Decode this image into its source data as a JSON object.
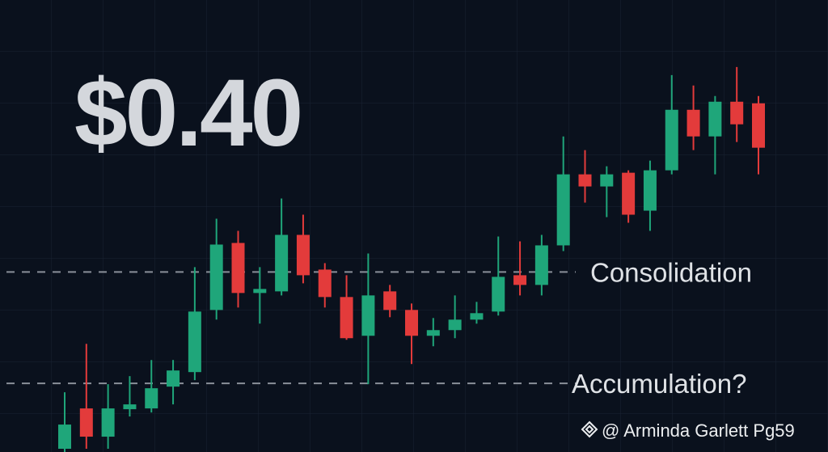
{
  "chart_data": {
    "type": "candlestick",
    "title": "$0.40",
    "open": [
      0.8,
      10.8,
      3.8,
      10.6,
      10.8,
      16.2,
      19.8,
      35.2,
      51.8,
      39.4,
      39.8,
      53.8,
      45.2,
      38.4,
      28.8,
      39.8,
      35.2,
      28.8,
      30.2,
      32.8,
      34.8,
      43.8,
      41.4,
      51.2,
      68.8,
      65.8,
      69.2,
      59.8,
      69.8,
      84.8,
      78.2,
      86.8,
      86.4
    ],
    "high": [
      14.8,
      26.8,
      16.8,
      18.8,
      22.8,
      22.8,
      45.8,
      57.8,
      54.8,
      45.8,
      62.8,
      58.8,
      46.8,
      43.8,
      49.2,
      41.4,
      36.8,
      33.2,
      38.8,
      37.2,
      53.4,
      52.2,
      53.8,
      78.2,
      74.8,
      70.8,
      69.8,
      72.2,
      93.4,
      90.8,
      88.2,
      95.4,
      88.2
    ],
    "low": [
      0,
      0.8,
      0.8,
      8.8,
      9.8,
      11.8,
      17.8,
      32.8,
      35.8,
      31.8,
      38.8,
      41.8,
      35.8,
      27.8,
      16.8,
      33.4,
      21.8,
      26.2,
      28.2,
      31.8,
      33.8,
      38.8,
      38.8,
      49.8,
      61.8,
      58.2,
      56.8,
      54.8,
      68.8,
      74.8,
      68.8,
      76.8,
      68.8
    ],
    "close": [
      6.8,
      3.8,
      10.8,
      11.8,
      15.8,
      20.2,
      34.8,
      51.4,
      39.4,
      40.4,
      53.8,
      43.8,
      38.4,
      28.2,
      38.8,
      35.2,
      28.8,
      30.2,
      32.8,
      34.4,
      43.4,
      41.4,
      51.2,
      68.8,
      65.8,
      68.8,
      58.8,
      69.8,
      84.8,
      78.2,
      86.8,
      81.2,
      75.4
    ],
    "up_color": "#1fa67a",
    "down_color": "#e33b3b",
    "ylim": [
      0,
      112
    ],
    "levels": [
      {
        "label": "Consolidation",
        "value": 44.6
      },
      {
        "label": "Accumulation?",
        "value": 17
      }
    ],
    "watermark": "@ Arminda Garlett Pg59"
  }
}
